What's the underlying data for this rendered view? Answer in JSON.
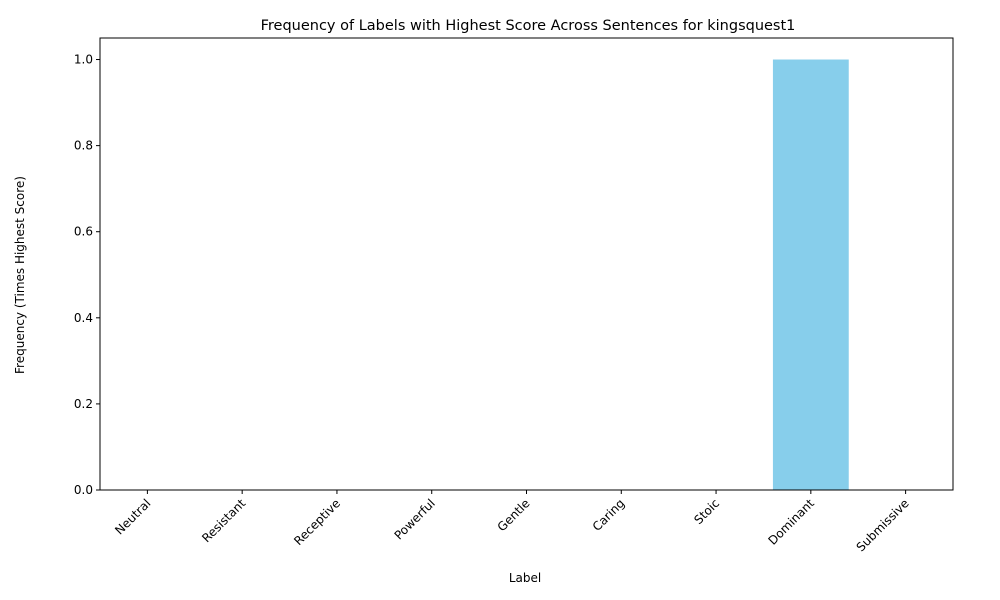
{
  "chart_data": {
    "type": "bar",
    "title": "Frequency of Labels with Highest Score Across Sentences for kingsquest1",
    "xlabel": "Label",
    "ylabel": "Frequency (Times Highest Score)",
    "categories": [
      "Neutral",
      "Resistant",
      "Receptive",
      "Powerful",
      "Gentle",
      "Caring",
      "Stoic",
      "Dominant",
      "Submissive"
    ],
    "values": [
      0,
      0,
      0,
      0,
      0,
      0,
      0,
      1,
      0
    ],
    "ylim": [
      0,
      1.05
    ],
    "yticks": [
      "0.0",
      "0.2",
      "0.4",
      "0.6",
      "0.8",
      "1.0"
    ],
    "bar_color": "#87ceeb",
    "grid": false,
    "legend": "none"
  }
}
